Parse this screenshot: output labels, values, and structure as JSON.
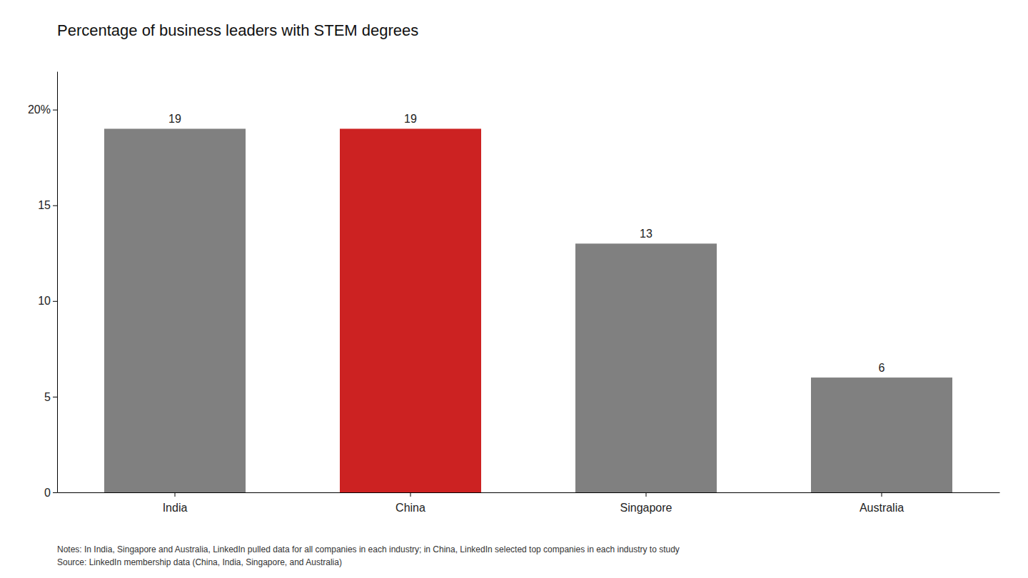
{
  "chart_data": {
    "type": "bar",
    "title": "Percentage of business leaders with STEM degrees",
    "categories": [
      "India",
      "China",
      "Singapore",
      "Australia"
    ],
    "values": [
      19,
      19,
      13,
      6
    ],
    "colors": [
      "#808080",
      "#cc2222",
      "#808080",
      "#808080"
    ],
    "ylim": [
      0,
      22
    ],
    "yticks": [
      0,
      5,
      10,
      15,
      {
        "value": 20,
        "label": "20%"
      }
    ],
    "grid": false,
    "data_labels": true,
    "annotations": [
      "Notes: In India, Singapore and Australia, LinkedIn pulled data for all companies in each industry; in China, LinkedIn selected top companies in each industry to study",
      "Source: LinkedIn membership data (China, India, Singapore, and Australia)"
    ]
  }
}
